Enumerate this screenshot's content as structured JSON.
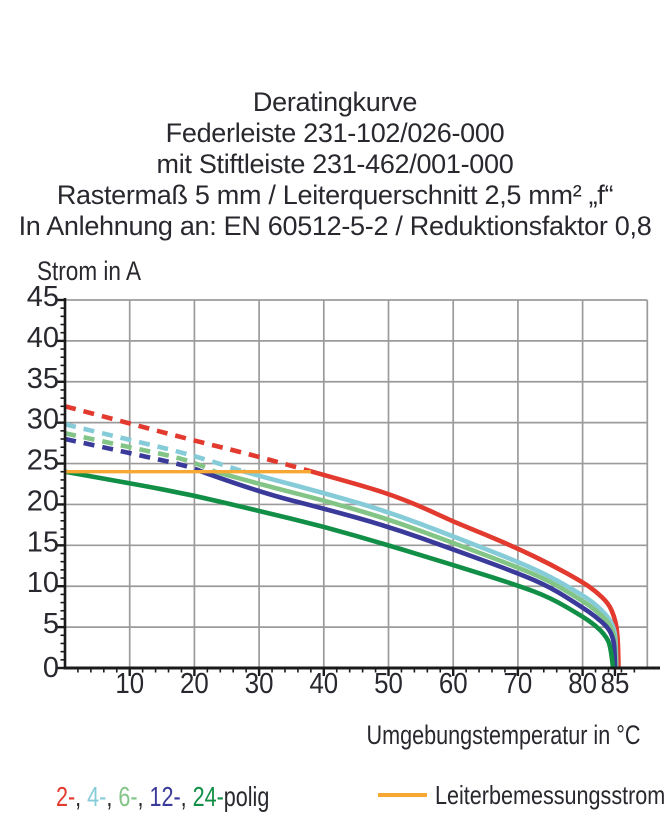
{
  "titles": [
    "Deratingkurve",
    "Federleiste 231-102/026-000",
    "mit Stiftleiste 231-462/001-000",
    "Rastermaß 5 mm / Leiterquerschnitt 2,5 mm² „f“",
    "In Anlehnung an: EN 60512-5-2 / Reduktionsfaktor 0,8"
  ],
  "legend": {
    "poles": {
      "items": [
        {
          "label": "2-",
          "color": "#e23a2e"
        },
        {
          "label": "4-",
          "color": "#85ccd8"
        },
        {
          "label": "6-",
          "color": "#83c586"
        },
        {
          "label": "12-",
          "color": "#3a3a9a"
        },
        {
          "label": "24-",
          "color": "#128f46"
        }
      ],
      "separator": ", ",
      "suffix": "polig"
    },
    "rated_current_label": "Leiterbemessungsstrom",
    "rated_current_color": "#f7a832"
  },
  "chart_data": {
    "type": "line",
    "title": "Deratingkurve",
    "xlabel": "Umgebungstemperatur in °C",
    "ylabel": "Strom in A",
    "xlim": [
      0,
      90
    ],
    "ylim": [
      0,
      45
    ],
    "x_major_ticks": [
      10,
      20,
      30,
      40,
      50,
      60,
      70,
      80,
      85
    ],
    "x_grid_step": 10,
    "x_minor_step": 2,
    "y_tick_step": 5,
    "y_minor_step": 1,
    "grid": true,
    "colors": {
      "grid": "#9b9b9b",
      "axis": "#1a1a1a",
      "text": "#28282e"
    },
    "limit_line": {
      "label": "Leiterbemessungsstrom",
      "value": 24,
      "x_range": [
        0,
        38
      ],
      "color": "#f7a832"
    },
    "series": [
      {
        "name": "2-polig",
        "color": "#e23a2e",
        "dash_until": 38,
        "points": [
          [
            0,
            32
          ],
          [
            10,
            29.9
          ],
          [
            20,
            27.8
          ],
          [
            30,
            25.85
          ],
          [
            38,
            24.05
          ],
          [
            45,
            22.5
          ],
          [
            50,
            21.3
          ],
          [
            55,
            19.75
          ],
          [
            60,
            17.9
          ],
          [
            65,
            16.3
          ],
          [
            70,
            14.6
          ],
          [
            75,
            12.7
          ],
          [
            80,
            10.5
          ],
          [
            82,
            9.4
          ],
          [
            84,
            7.9
          ],
          [
            84.9,
            6.3
          ],
          [
            85.3,
            4.8
          ],
          [
            85.5,
            2.6
          ],
          [
            85.55,
            0
          ]
        ]
      },
      {
        "name": "4-polig",
        "color": "#85ccd8",
        "dash_until": 27.5,
        "points": [
          [
            0,
            29.8
          ],
          [
            10,
            27.9
          ],
          [
            20,
            26.0
          ],
          [
            27.5,
            24.05
          ],
          [
            30,
            23.5
          ],
          [
            40,
            21.4
          ],
          [
            50,
            19.1
          ],
          [
            60,
            16.1
          ],
          [
            70,
            13.0
          ],
          [
            75,
            11.2
          ],
          [
            80,
            8.9
          ],
          [
            82,
            7.8
          ],
          [
            84,
            6.2
          ],
          [
            84.9,
            4.8
          ],
          [
            85.15,
            3.1
          ],
          [
            85.2,
            0
          ]
        ]
      },
      {
        "name": "6-polig",
        "color": "#83c586",
        "dash_until": 23,
        "points": [
          [
            0,
            28.7
          ],
          [
            10,
            27.0
          ],
          [
            20,
            25.3
          ],
          [
            23,
            24.05
          ],
          [
            30,
            22.5
          ],
          [
            40,
            20.5
          ],
          [
            50,
            18.2
          ],
          [
            60,
            15.3
          ],
          [
            70,
            12.3
          ],
          [
            75,
            10.6
          ],
          [
            80,
            8.2
          ],
          [
            82,
            7.1
          ],
          [
            84,
            5.6
          ],
          [
            84.85,
            4.2
          ],
          [
            85.05,
            2.7
          ],
          [
            85.1,
            0
          ]
        ]
      },
      {
        "name": "12-polig",
        "color": "#3a3a9a",
        "dash_until": 21,
        "points": [
          [
            0,
            28.0
          ],
          [
            10,
            26.3
          ],
          [
            20,
            24.5
          ],
          [
            21,
            24.05
          ],
          [
            30,
            21.5
          ],
          [
            40,
            19.5
          ],
          [
            50,
            17.3
          ],
          [
            60,
            14.5
          ],
          [
            70,
            11.6
          ],
          [
            75,
            9.9
          ],
          [
            80,
            7.4
          ],
          [
            82,
            6.3
          ],
          [
            84,
            4.9
          ],
          [
            84.75,
            3.6
          ],
          [
            84.95,
            2.2
          ],
          [
            85.0,
            0
          ]
        ]
      },
      {
        "name": "24-polig",
        "color": "#128f46",
        "dash_until": null,
        "points": [
          [
            0,
            24.0
          ],
          [
            10,
            22.6
          ],
          [
            20,
            21.1
          ],
          [
            30,
            19.2
          ],
          [
            40,
            17.3
          ],
          [
            50,
            15.0
          ],
          [
            60,
            12.6
          ],
          [
            70,
            10.1
          ],
          [
            75,
            8.6
          ],
          [
            80,
            6.3
          ],
          [
            82,
            5.2
          ],
          [
            83.5,
            4.0
          ],
          [
            84.35,
            2.7
          ],
          [
            84.7,
            0
          ]
        ]
      }
    ]
  }
}
